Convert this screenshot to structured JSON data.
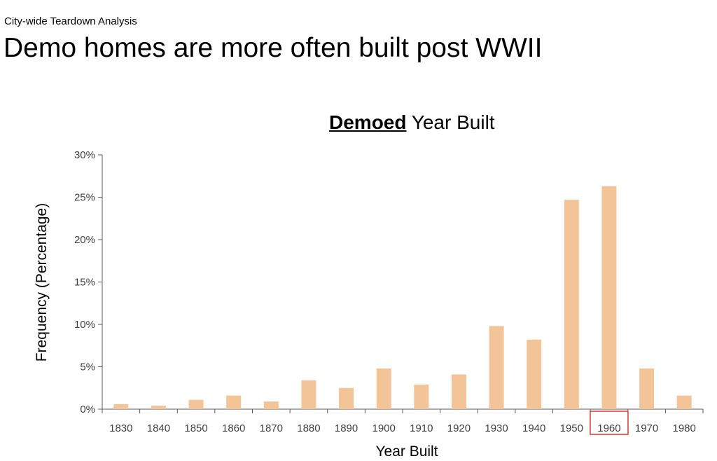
{
  "header": {
    "kicker": "City-wide Teardown Analysis",
    "headline": "Demo homes are more often built post WWII"
  },
  "chart_data": {
    "type": "bar",
    "title_emphasis": "Demoed",
    "title_rest": " Year Built",
    "xlabel": "Year Built",
    "ylabel": "Frequency (Percentage)",
    "categories": [
      "1830",
      "1840",
      "1850",
      "1860",
      "1870",
      "1880",
      "1890",
      "1900",
      "1910",
      "1920",
      "1930",
      "1940",
      "1950",
      "1960",
      "1970",
      "1980"
    ],
    "values": [
      0.6,
      0.4,
      1.1,
      1.6,
      0.9,
      3.4,
      2.5,
      4.8,
      2.9,
      4.1,
      9.8,
      8.2,
      24.7,
      26.3,
      4.8,
      1.6
    ],
    "ylim": [
      0,
      30
    ],
    "yticks": [
      0,
      5,
      10,
      15,
      20,
      25,
      30
    ],
    "ytick_suffix": "%",
    "highlight_category": "1960",
    "bar_color": "#f3c498",
    "highlight_color": "#e0413a",
    "grid": false,
    "legend": "none"
  }
}
